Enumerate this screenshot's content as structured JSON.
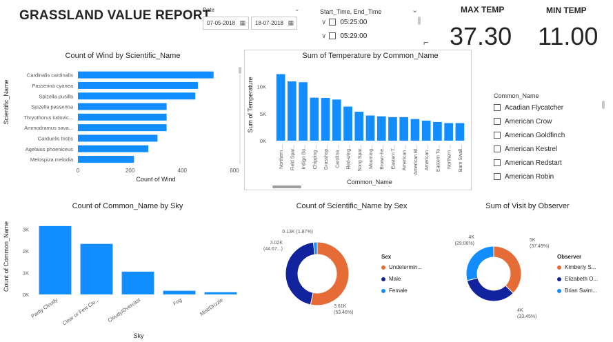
{
  "report": {
    "title": "GRASSLAND VALUE REPORT"
  },
  "date_slicer": {
    "label": "Date",
    "start": "07-05-2018",
    "end": "18-07-2018"
  },
  "time_slicer": {
    "label": "Start_Time, End_Time",
    "items": [
      "05:25:00",
      "05:29:00"
    ]
  },
  "kpis": {
    "max_temp": {
      "label": "MAX TEMP",
      "value": "37.30"
    },
    "min_temp": {
      "label": "MIN TEMP",
      "value": "11.00"
    }
  },
  "common_name_slicer": {
    "label": "Common_Name",
    "items": [
      "Acadian Flycatcher",
      "American Crow",
      "American Goldfinch",
      "American Kestrel",
      "American Redstart",
      "American Robin"
    ]
  },
  "colors": {
    "blue": "#118DFF",
    "navy": "#12239E",
    "orange": "#E66C37"
  },
  "chart_data": [
    {
      "id": "wind",
      "type": "bar",
      "orientation": "horizontal",
      "title": "Count of Wind by Scientific_Name",
      "xlabel": "Count of Wind",
      "ylabel": "Scientific_Name",
      "categories": [
        "Cardinalis cardinalis",
        "Passerina cyanea",
        "Spizella pusilla",
        "Spizella passerina",
        "Thryothorus ludovic...",
        "Ammodramus sava...",
        "Carduelis tristis",
        "Agelaius phoeniceus",
        "Melospiza melodia"
      ],
      "values": [
        520,
        460,
        450,
        340,
        340,
        340,
        305,
        270,
        215
      ],
      "xticks": [
        "0",
        "200",
        "400",
        "600"
      ],
      "xlim": [
        0,
        600
      ]
    },
    {
      "id": "temp",
      "type": "bar",
      "title": "Sum of Temperature by Common_Name",
      "xlabel": "Common_Name",
      "ylabel": "Sum of Temperature",
      "categories": [
        "Northern ...",
        "Field Spar...",
        "Indigo Bu...",
        "Chipping ...",
        "Grasshop...",
        "Carolina ...",
        "Red-wing...",
        "Song Spar...",
        "Mourning...",
        "Brown-he...",
        "Eastern T...",
        "American ...",
        "American Bl...",
        "American ...",
        "Eastern To...",
        "Northern ...",
        "Barn Swall..."
      ],
      "values": [
        12300,
        10950,
        10800,
        7950,
        7900,
        7600,
        6300,
        5350,
        4650,
        4500,
        4350,
        4350,
        4000,
        3700,
        3450,
        3250,
        3250
      ],
      "yticks": [
        "0K",
        "5K",
        "10K"
      ],
      "ylim": [
        0,
        13000
      ]
    },
    {
      "id": "sky",
      "type": "bar",
      "title": "Count of Common_Name by Sky",
      "xlabel": "Sky",
      "ylabel": "Count of Common_Name",
      "categories": [
        "Partly Cloudy",
        "Clear or Few Clo...",
        "Cloudy/Overcast",
        "Fog",
        "Mist/Drizzle"
      ],
      "values": [
        3150,
        2330,
        1050,
        170,
        100
      ],
      "yticks": [
        "0K",
        "1K",
        "2K",
        "3K"
      ],
      "ylim": [
        0,
        3400
      ]
    },
    {
      "id": "sex",
      "type": "pie",
      "title": "Count of Scientific_Name by Sex",
      "legend_title": "Sex",
      "slices": [
        {
          "name": "Undetermin...",
          "value": 3610,
          "label": "3.61K",
          "pct": "(53.46%)",
          "color": "#E66C37"
        },
        {
          "name": "Male",
          "value": 3020,
          "label": "3.02K",
          "pct": "(44.67...)",
          "color": "#12239E"
        },
        {
          "name": "Female",
          "value": 130,
          "label": "0.13K (1.87%)",
          "pct": "",
          "color": "#118DFF"
        }
      ]
    },
    {
      "id": "observer",
      "type": "pie",
      "title": "Sum of Visit by Observer",
      "legend_title": "Observer",
      "slices": [
        {
          "name": "Kimberly S...",
          "value": 37.49,
          "label": "5K",
          "pct": "(37.49%)",
          "color": "#E66C37"
        },
        {
          "name": "Elizabeth O...",
          "value": 33.45,
          "label": "4K",
          "pct": "(33.45%)",
          "color": "#12239E"
        },
        {
          "name": "Brian Swim...",
          "value": 29.06,
          "label": "4K",
          "pct": "(29.06%)",
          "color": "#118DFF"
        }
      ]
    }
  ]
}
